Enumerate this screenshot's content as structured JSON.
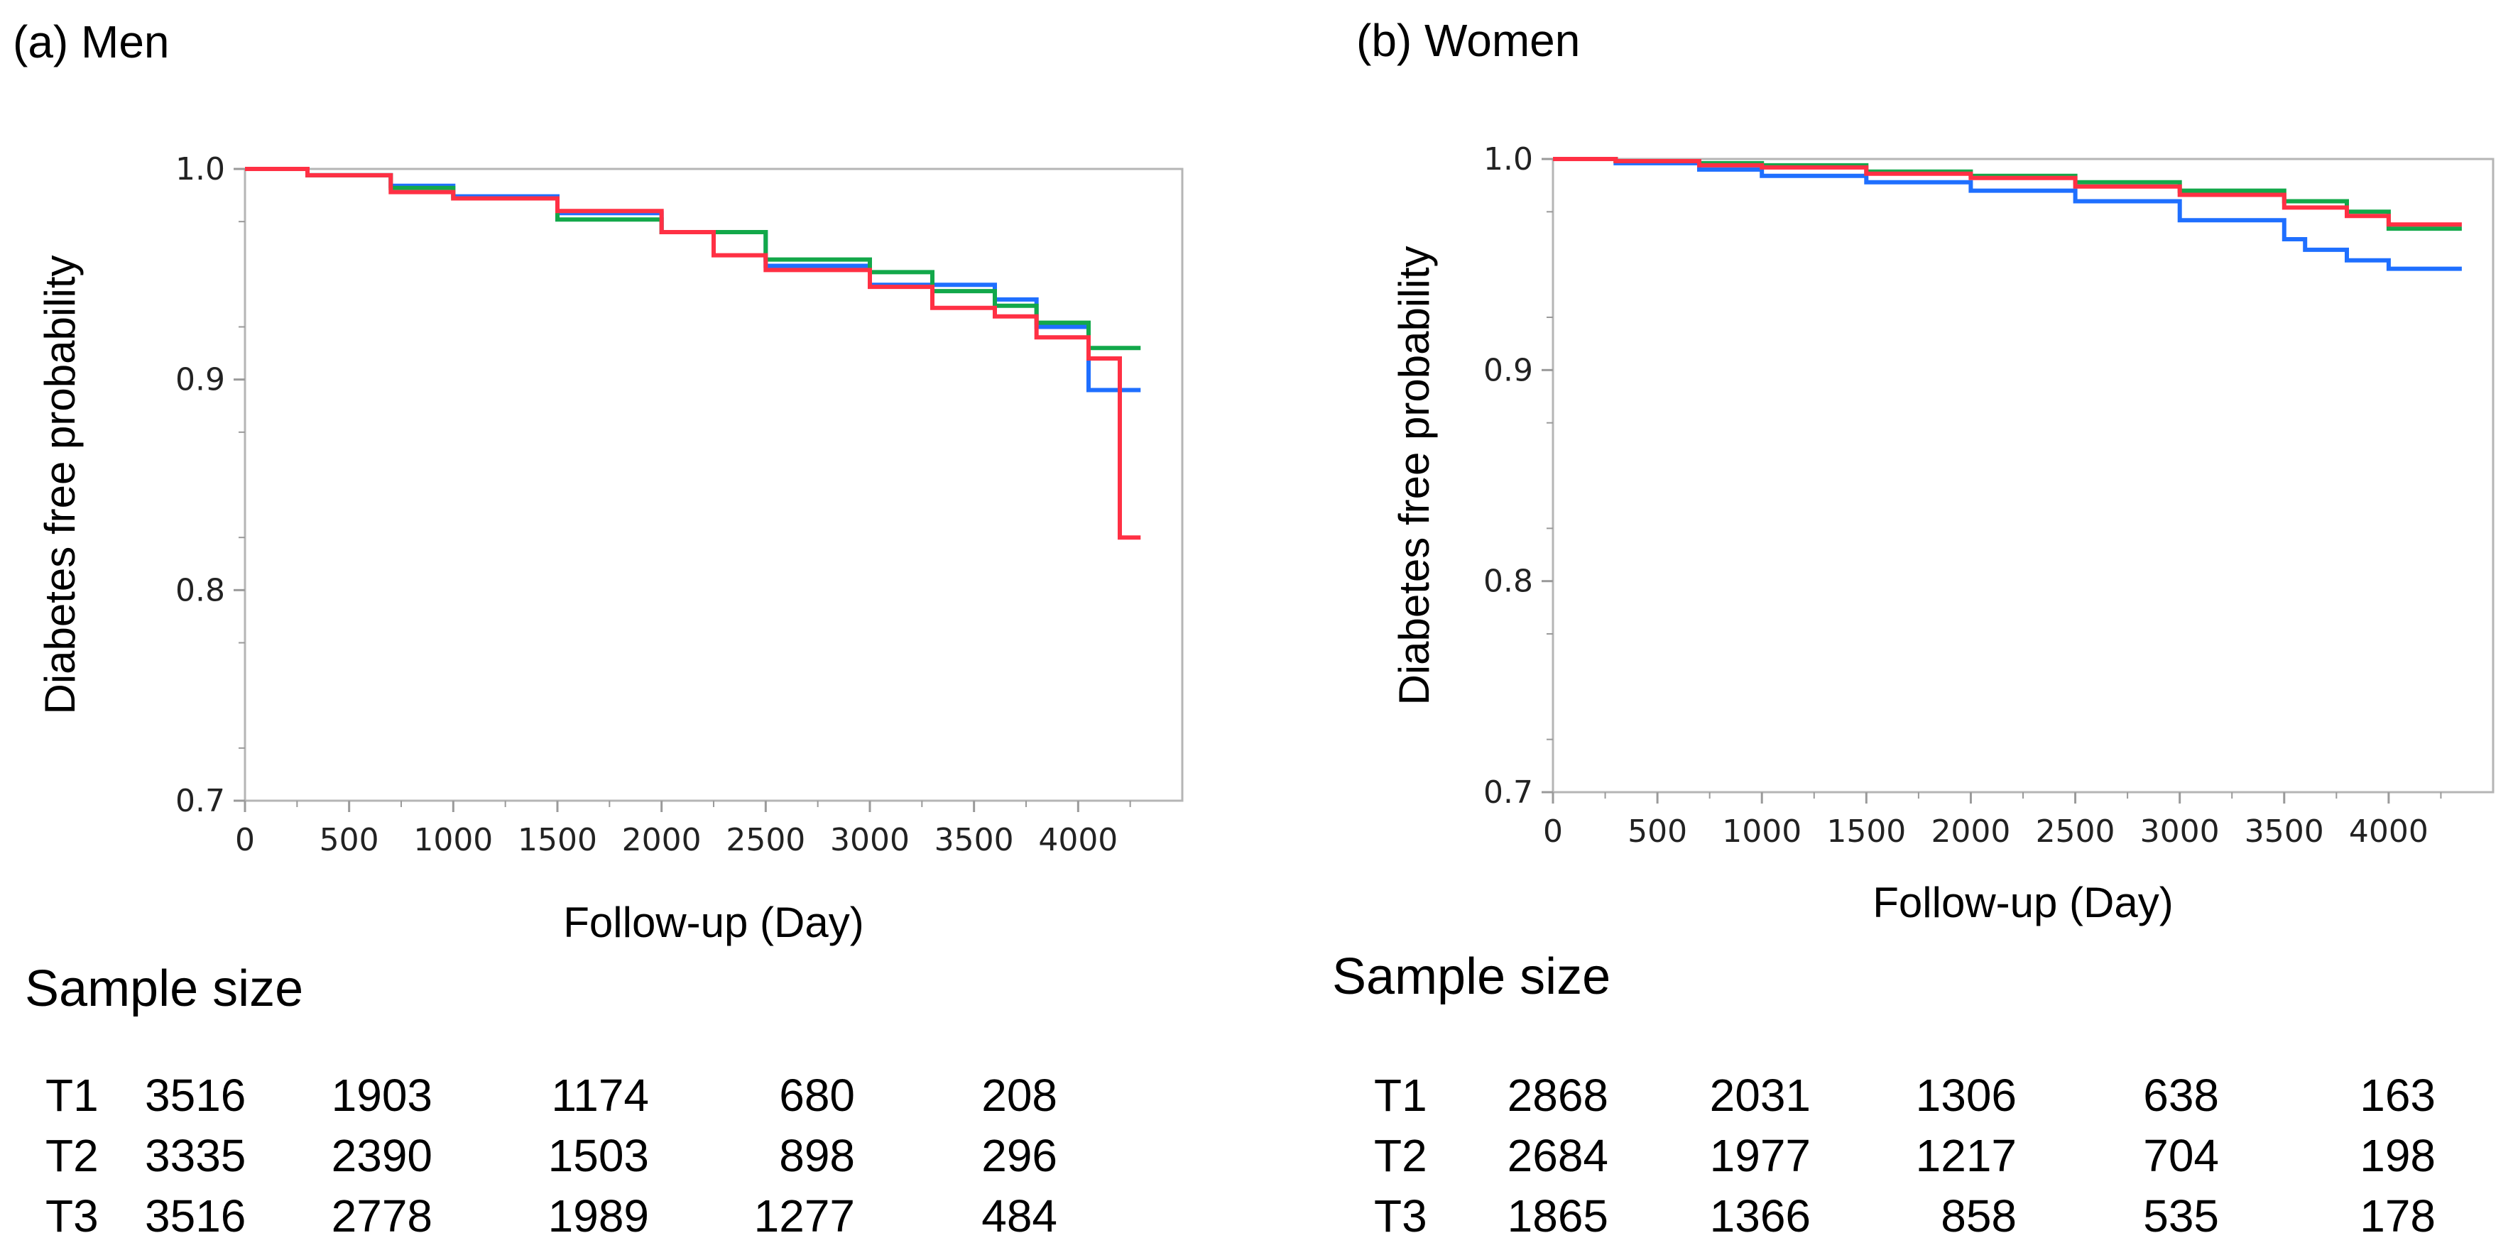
{
  "chart_data": [
    {
      "type": "line",
      "subtype": "step",
      "panel_label": "(a) Men",
      "xlabel": "Follow-up (Day)",
      "ylabel": "Diabetes free probability",
      "xlim": [
        0,
        4500
      ],
      "ylim": [
        0.7,
        1.0
      ],
      "x_ticks": [
        "0",
        "500",
        "1000",
        "1500",
        "2000",
        "2500",
        "3000",
        "3500",
        "4000"
      ],
      "y_ticks": [
        "0.7",
        "0.8",
        "0.9",
        "1.0"
      ],
      "grid": false,
      "series": [
        {
          "name": "T1",
          "color": "#1f6fff",
          "x": [
            0,
            300,
            700,
            1000,
            1500,
            2000,
            2500,
            3000,
            3600,
            3800,
            4050,
            4300
          ],
          "y": [
            1.0,
            0.997,
            0.992,
            0.987,
            0.979,
            0.97,
            0.954,
            0.945,
            0.938,
            0.925,
            0.895,
            0.895
          ]
        },
        {
          "name": "T2",
          "color": "#12a84a",
          "x": [
            0,
            300,
            700,
            1000,
            1500,
            2000,
            2500,
            3000,
            3300,
            3600,
            3800,
            4050,
            4300
          ],
          "y": [
            1.0,
            0.997,
            0.991,
            0.986,
            0.976,
            0.97,
            0.957,
            0.951,
            0.942,
            0.935,
            0.927,
            0.915,
            0.915
          ]
        },
        {
          "name": "T3",
          "color": "#ff3044",
          "x": [
            0,
            300,
            700,
            1000,
            1500,
            2000,
            2250,
            2500,
            3000,
            3300,
            3600,
            3800,
            4050,
            4200,
            4300
          ],
          "y": [
            1.0,
            0.997,
            0.989,
            0.986,
            0.98,
            0.97,
            0.959,
            0.952,
            0.944,
            0.934,
            0.93,
            0.92,
            0.91,
            0.825,
            0.825
          ]
        }
      ]
    },
    {
      "type": "line",
      "subtype": "step",
      "panel_label": "(b) Women",
      "xlabel": "Follow-up (Day)",
      "ylabel": "Diabetes free probability",
      "xlim": [
        0,
        4500
      ],
      "ylim": [
        0.7,
        1.0
      ],
      "x_ticks": [
        "0",
        "500",
        "1000",
        "1500",
        "2000",
        "2500",
        "3000",
        "3500",
        "4000"
      ],
      "y_ticks": [
        "0.7",
        "0.8",
        "0.9",
        "1.0"
      ],
      "grid": false,
      "series": [
        {
          "name": "T1",
          "color": "#1f6fff",
          "x": [
            0,
            300,
            700,
            1000,
            1500,
            2000,
            2500,
            3000,
            3500,
            3600,
            3800,
            4000,
            4350
          ],
          "y": [
            1.0,
            0.998,
            0.995,
            0.992,
            0.989,
            0.985,
            0.98,
            0.971,
            0.962,
            0.957,
            0.952,
            0.948,
            0.948
          ]
        },
        {
          "name": "T2",
          "color": "#12a84a",
          "x": [
            0,
            300,
            700,
            1000,
            1500,
            2000,
            2500,
            3000,
            3500,
            3800,
            4000,
            4350
          ],
          "y": [
            1.0,
            0.999,
            0.998,
            0.997,
            0.994,
            0.992,
            0.989,
            0.985,
            0.98,
            0.975,
            0.967,
            0.967
          ]
        },
        {
          "name": "T3",
          "color": "#ff3044",
          "x": [
            0,
            300,
            700,
            1000,
            1500,
            2000,
            2500,
            3000,
            3500,
            3800,
            4000,
            4350
          ],
          "y": [
            1.0,
            0.999,
            0.997,
            0.996,
            0.993,
            0.991,
            0.987,
            0.983,
            0.977,
            0.973,
            0.969,
            0.969
          ]
        }
      ]
    }
  ],
  "sample_size": {
    "title": "Sample size",
    "men": {
      "rows": [
        {
          "group": "T1",
          "values": [
            "3516",
            "1903",
            "1174",
            "680",
            "208"
          ]
        },
        {
          "group": "T2",
          "values": [
            "3335",
            "2390",
            "1503",
            "898",
            "296"
          ]
        },
        {
          "group": "T3",
          "values": [
            "3516",
            "2778",
            "1989",
            "1277",
            "484"
          ]
        }
      ]
    },
    "women": {
      "rows": [
        {
          "group": "T1",
          "values": [
            "2868",
            "2031",
            "1306",
            "638",
            "163"
          ]
        },
        {
          "group": "T2",
          "values": [
            "2684",
            "1977",
            "1217",
            "704",
            "198"
          ]
        },
        {
          "group": "T3",
          "values": [
            "1865",
            "1366",
            "858",
            "535",
            "178"
          ]
        }
      ]
    }
  }
}
